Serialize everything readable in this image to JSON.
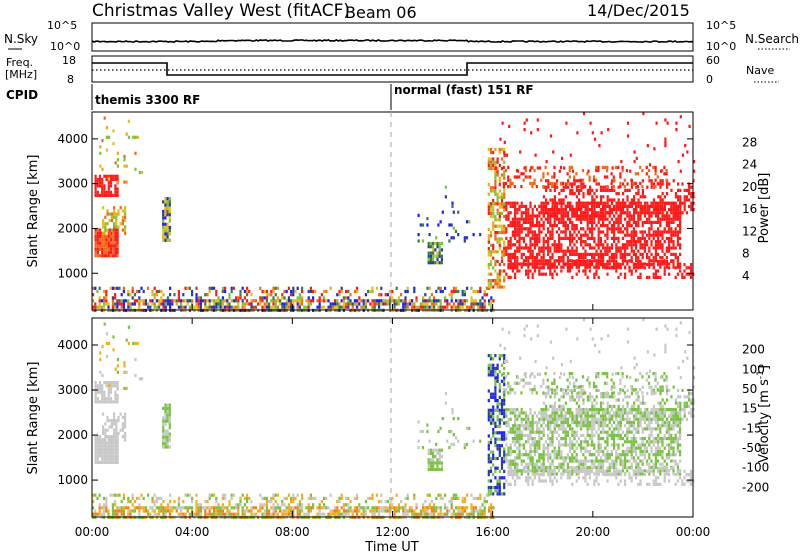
{
  "header": {
    "title": "Christmas Valley West (fitACF)",
    "beam": "Beam 06",
    "date": "14/Dec/2015"
  },
  "noise_panel": {
    "left_label": "N.Sky",
    "right_label": "N.Search",
    "left_ticks": [
      "10^5",
      "10^0"
    ],
    "right_ticks": [
      "10^5",
      "10^0"
    ]
  },
  "freq_panel": {
    "left_label_1": "Freq.",
    "left_label_2": "[MHz]",
    "right_label": "Nave",
    "left_ticks": [
      "18",
      "8"
    ],
    "right_ticks": [
      "60",
      "0"
    ]
  },
  "cpid_panel": {
    "label": "CPID",
    "segments": [
      {
        "start_hour": 0,
        "text": "themis 3300 RF"
      },
      {
        "start_hour": 12,
        "text": "normal (fast) 151 RF"
      }
    ]
  },
  "colors": {
    "power": [
      "#1f1fff",
      "#27409a",
      "#3a7a4a",
      "#7ac241",
      "#e0c21a",
      "#f0a51a",
      "#f06a1a",
      "#ff1a1a"
    ],
    "velocity": [
      "#1f1fff",
      "#27409a",
      "#3a7a4a",
      "#7ac241",
      "#c8c8c8",
      "#f0b020",
      "#f08020",
      "#f04a1a",
      "#ff1a1a"
    ]
  },
  "chart_data": [
    {
      "type": "heatmap",
      "name": "power",
      "ylabel": "Slant Range [km]",
      "ylim": [
        180,
        4600
      ],
      "yticks": [
        "1000",
        "2000",
        "3000",
        "4000"
      ],
      "xlim_hours": [
        0,
        24
      ],
      "colorbar_label": "Power [dB]",
      "colorbar_ticks": [
        "4",
        "8",
        "12",
        "16",
        "20",
        "24",
        "28"
      ],
      "colorbar_range": [
        0,
        30
      ],
      "dashed_marker_hour": 12
    },
    {
      "type": "heatmap",
      "name": "velocity",
      "ylabel": "Slant Range [km]",
      "ylim": [
        180,
        4600
      ],
      "yticks": [
        "1000",
        "2000",
        "3000",
        "4000"
      ],
      "xlim_hours": [
        0,
        24
      ],
      "xticks": [
        "00:00",
        "04:00",
        "08:00",
        "12:00",
        "16:00",
        "20:00",
        "00:00"
      ],
      "xlabel": "Time UT",
      "colorbar_label": "Velocity [m s",
      "colorbar_label_sup": "-1",
      "colorbar_label_end": "]",
      "colorbar_ticks": [
        "200",
        "100",
        "50",
        "15",
        "-15",
        "-50",
        "-100",
        "-200"
      ],
      "dashed_marker_hour": 12
    }
  ]
}
